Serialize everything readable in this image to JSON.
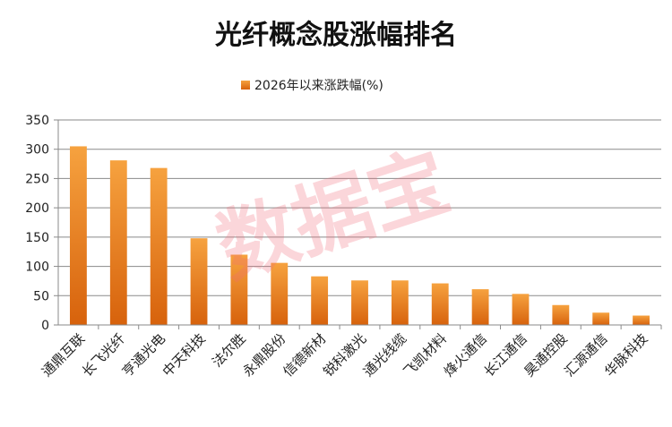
{
  "chart_data": {
    "type": "bar",
    "title": "光纤概念股涨幅排名",
    "xlabel": "",
    "ylabel": "",
    "ylim": [
      0,
      350
    ],
    "yticks": [
      0,
      50,
      100,
      150,
      200,
      250,
      300,
      350
    ],
    "grid": true,
    "legend_position": "top",
    "categories": [
      "通鼎互联",
      "长飞光纤",
      "亨通光电",
      "中天科技",
      "法尔胜",
      "永鼎股份",
      "信德新材",
      "锐科激光",
      "通光线缆",
      "飞凯材料",
      "烽火通信",
      "长江通信",
      "昊通控股",
      "汇源通信",
      "华脉科技"
    ],
    "series": [
      {
        "name": "2026年以来涨跌幅(%)",
        "values": [
          305,
          281,
          268,
          148,
          120,
          106,
          83,
          76,
          76,
          71,
          61,
          53,
          34,
          21,
          16
        ]
      }
    ],
    "bar_color": "#e57a1b",
    "bar_highlight": "#f6a23f"
  },
  "watermark": "数据宝"
}
